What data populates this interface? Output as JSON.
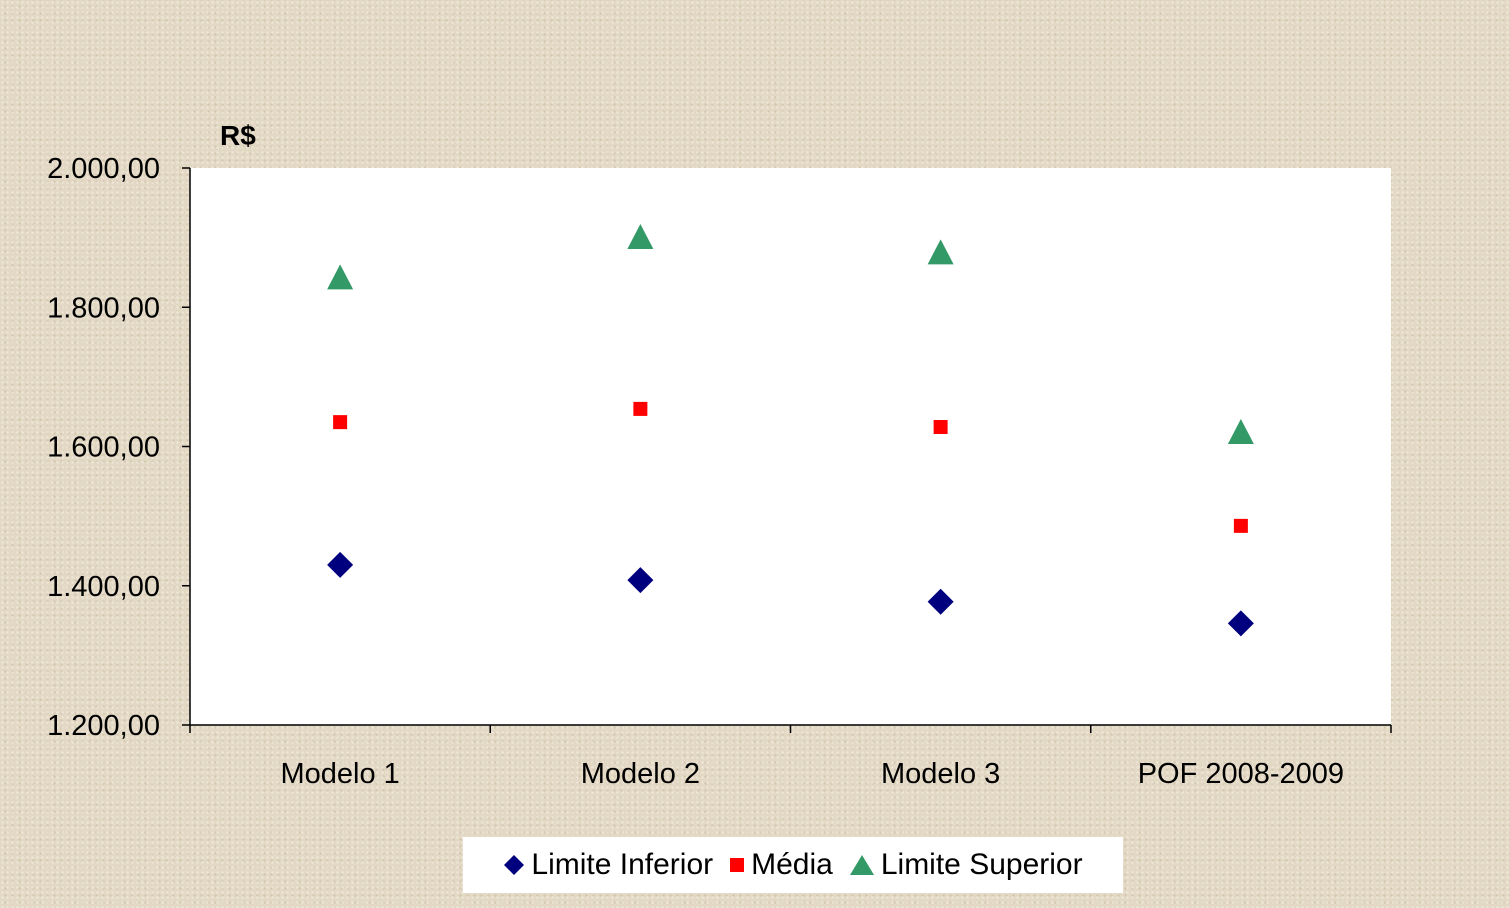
{
  "chart_data": {
    "type": "scatter",
    "unit_label": "R$",
    "categories": [
      "Modelo 1",
      "Modelo 2",
      "Modelo 3",
      "POF 2008-2009"
    ],
    "ylim": [
      1200,
      2000
    ],
    "yticks": [
      1200,
      1400,
      1600,
      1800,
      2000
    ],
    "ytick_labels": [
      "1.200,00",
      "1.400,00",
      "1.600,00",
      "1.800,00",
      "2.000,00"
    ],
    "grid": false,
    "legend_position": "bottom",
    "series": [
      {
        "name": "Limite Inferior",
        "marker": "diamond",
        "color": "#00007f",
        "values": [
          1430,
          1408,
          1377,
          1346
        ]
      },
      {
        "name": "Média",
        "marker": "square",
        "color": "#ff0000",
        "values": [
          1635,
          1654,
          1628,
          1486
        ]
      },
      {
        "name": "Limite Superior",
        "marker": "triangle",
        "color": "#339966",
        "values": [
          1840,
          1898,
          1876,
          1618
        ]
      }
    ]
  }
}
